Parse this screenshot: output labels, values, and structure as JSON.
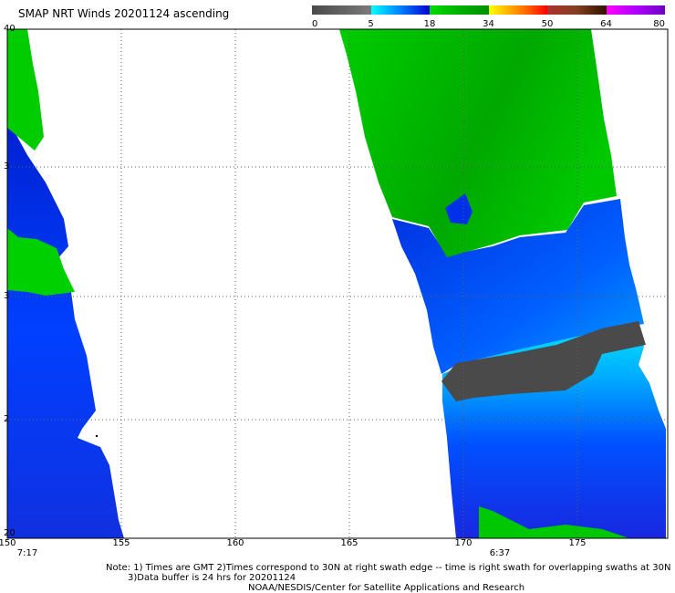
{
  "title": "SMAP NRT Winds 20201124 ascending",
  "legend": {
    "labels": [
      "0",
      "5",
      "18",
      "34",
      "50",
      "64",
      "80"
    ],
    "segments": [
      {
        "from": 0,
        "to": 5,
        "colors": [
          "#4a4a4a",
          "#7a7a7a"
        ]
      },
      {
        "from": 5,
        "to": 18,
        "colors": [
          "#00ffff",
          "#0080ff",
          "#0000d0"
        ]
      },
      {
        "from": 18,
        "to": 34,
        "colors": [
          "#00dd00",
          "#00b000",
          "#009000"
        ]
      },
      {
        "from": 34,
        "to": 50,
        "colors": [
          "#ffff00",
          "#ffb000",
          "#ff6000",
          "#ff0000"
        ]
      },
      {
        "from": 50,
        "to": 64,
        "colors": [
          "#b03030",
          "#804020",
          "#301000"
        ]
      },
      {
        "from": 64,
        "to": 80,
        "colors": [
          "#ff00ff",
          "#b000ff",
          "#7000c0"
        ]
      }
    ]
  },
  "map": {
    "lon_range": [
      150,
      180
    ],
    "lat_range": [
      20,
      40
    ],
    "lon_ticks": [
      "150",
      "155",
      "160",
      "165",
      "170",
      "175"
    ],
    "lat_ticks": [
      "40",
      "3",
      "3",
      "2",
      "20"
    ],
    "swath_times": [
      {
        "label": "7:17",
        "lon": 150.5
      },
      {
        "label": "6:37",
        "lon": 171.5
      }
    ]
  },
  "notes": {
    "line1": "Note: 1) Times are GMT 2)Times correspond to 30N at right swath edge -- time is right swath for overlapping swaths at 30N",
    "line2": "3)Data buffer is 24 hrs for 20201124",
    "line3": "NOAA/NESDIS/Center for Satellite Applications and Research"
  },
  "colors": {
    "calm": "#505050",
    "light_cyan": "#00e0ff",
    "mid_blue": "#0060ff",
    "dark_blue": "#0020e0",
    "green": "#00d000",
    "dark_green": "#00a000"
  }
}
